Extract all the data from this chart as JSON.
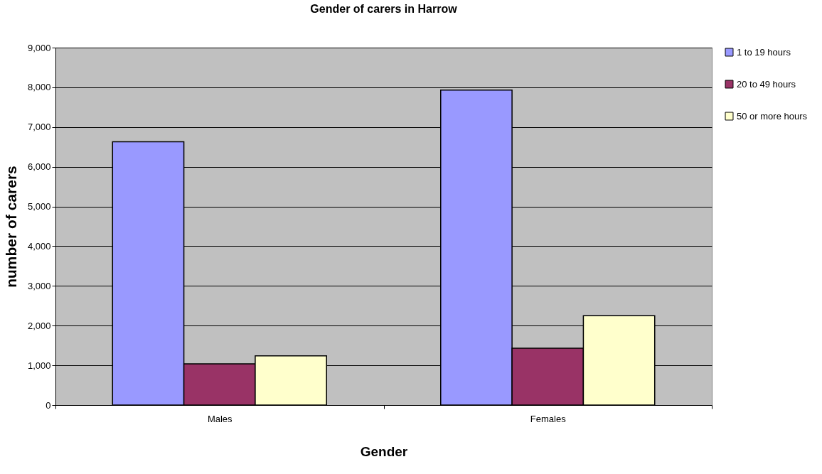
{
  "chart_data": {
    "type": "bar",
    "title": "Gender of carers in Harrow",
    "xlabel": "Gender",
    "ylabel": "number of carers",
    "categories": [
      "Males",
      "Females"
    ],
    "series": [
      {
        "name": "1 to 19 hours",
        "color": "#9999ff",
        "values": [
          6630,
          7930
        ]
      },
      {
        "name": "20 to 49 hours",
        "color": "#993366",
        "values": [
          1040,
          1430
        ]
      },
      {
        "name": "50 or more hours",
        "color": "#ffffcc",
        "values": [
          1240,
          2250
        ]
      }
    ],
    "ylim": [
      0,
      9000
    ],
    "yticks": [
      {
        "value": 0,
        "label": "0"
      },
      {
        "value": 1000,
        "label": "1,000"
      },
      {
        "value": 2000,
        "label": "2,000"
      },
      {
        "value": 3000,
        "label": "3,000"
      },
      {
        "value": 4000,
        "label": "4,000"
      },
      {
        "value": 5000,
        "label": "5,000"
      },
      {
        "value": 6000,
        "label": "6,000"
      },
      {
        "value": 7000,
        "label": "7,000"
      },
      {
        "value": 8000,
        "label": "8,000"
      },
      {
        "value": 9000,
        "label": "9,000"
      }
    ],
    "grid": "y",
    "legend": "right"
  }
}
